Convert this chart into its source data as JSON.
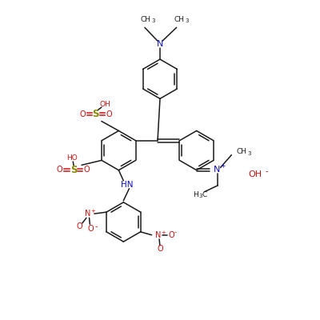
{
  "bg": "#ffffff",
  "bc": "#1a1a1a",
  "nc": "#1111bb",
  "oc": "#cc1111",
  "sc": "#888800",
  "figsize": [
    4.0,
    4.0
  ],
  "dpi": 100,
  "xlim": [
    0,
    10
  ],
  "ylim": [
    0,
    10
  ]
}
